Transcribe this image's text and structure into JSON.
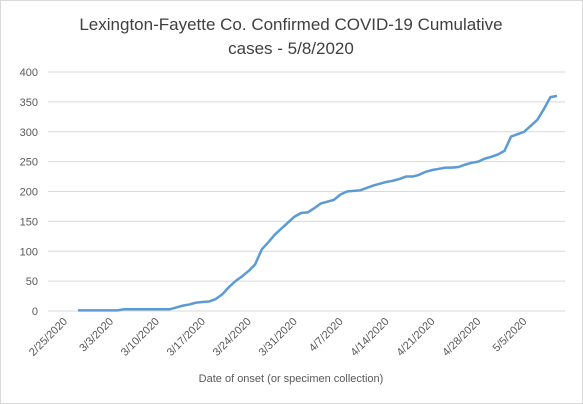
{
  "chart_data": {
    "type": "line",
    "title": [
      "Lexington-Fayette Co. Confirmed COVID-19 Cumulative",
      "cases - 5/8/2020"
    ],
    "x_label": "Date of onset (or specimen collection)",
    "categories": [
      "2/25/2020",
      null,
      null,
      null,
      null,
      null,
      null,
      "3/3/2020",
      null,
      null,
      null,
      null,
      null,
      null,
      "3/10/2020",
      null,
      null,
      null,
      null,
      null,
      null,
      "3/17/2020",
      null,
      null,
      null,
      null,
      null,
      null,
      "3/24/2020",
      null,
      null,
      null,
      null,
      null,
      null,
      "3/31/2020",
      null,
      null,
      null,
      null,
      null,
      null,
      "4/7/2020",
      null,
      null,
      null,
      null,
      null,
      null,
      "4/14/2020",
      null,
      null,
      null,
      null,
      null,
      null,
      "4/21/2020",
      null,
      null,
      null,
      null,
      null,
      null,
      "4/28/2020",
      null,
      null,
      null,
      null,
      null,
      null,
      "5/5/2020",
      null,
      null,
      null
    ],
    "values": [
      1,
      1,
      1,
      1,
      1,
      1,
      1,
      3,
      3,
      3,
      3,
      3,
      3,
      3,
      3,
      6,
      9,
      11,
      14,
      15,
      16,
      20,
      28,
      40,
      50,
      58,
      67,
      78,
      103,
      115,
      128,
      138,
      148,
      158,
      164,
      165,
      172,
      180,
      183,
      186,
      195,
      200,
      201,
      202,
      206,
      210,
      213,
      216,
      218,
      221,
      225,
      225,
      228,
      233,
      236,
      238,
      240,
      240,
      241,
      245,
      248,
      250,
      255,
      258,
      262,
      268,
      292,
      296,
      300,
      310,
      320,
      338,
      358,
      360
    ],
    "color": "#5b9bd5",
    "ylim": [
      0,
      400
    ],
    "yticks": [
      0,
      50,
      100,
      150,
      200,
      250,
      300,
      350,
      400
    ],
    "grid": true
  }
}
